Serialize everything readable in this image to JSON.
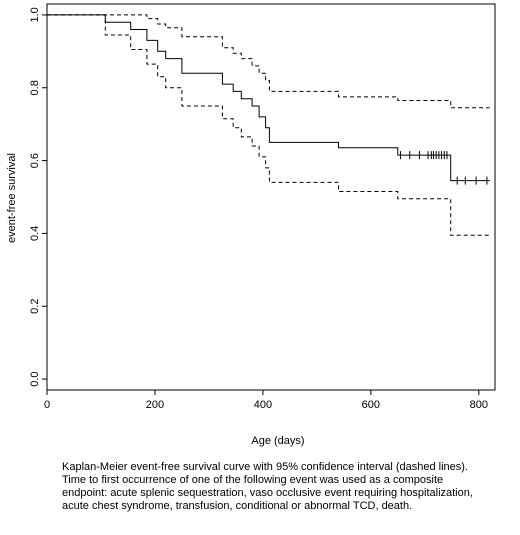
{
  "chart_data": {
    "type": "line",
    "title": "",
    "xlabel": "Age (days)",
    "ylabel": "event-free survival",
    "xlim": [
      0,
      830
    ],
    "ylim": [
      -0.03,
      1.03
    ],
    "x_ticks": [
      0,
      200,
      400,
      600,
      800
    ],
    "y_ticks": [
      0.0,
      0.2,
      0.4,
      0.6,
      0.8,
      1.0
    ],
    "y_tick_labels": [
      "0.0",
      "0.2",
      "0.4",
      "0.6",
      "0.8",
      "1.0"
    ],
    "grid": false,
    "series": [
      {
        "style": "solid",
        "x": [
          0,
          108,
          155,
          185,
          205,
          220,
          250,
          325,
          345,
          360,
          380,
          393,
          405,
          412,
          540,
          650,
          748,
          820
        ],
        "y": [
          1.0,
          0.98,
          0.96,
          0.93,
          0.9,
          0.88,
          0.84,
          0.81,
          0.79,
          0.77,
          0.75,
          0.72,
          0.69,
          0.65,
          0.635,
          0.615,
          0.545,
          0.545
        ]
      },
      {
        "style": "dashed",
        "x": [
          0,
          108,
          155,
          185,
          205,
          220,
          250,
          325,
          345,
          360,
          380,
          393,
          405,
          412,
          540,
          650,
          748,
          820
        ],
        "y": [
          1.0,
          1.0,
          1.0,
          0.99,
          0.975,
          0.965,
          0.94,
          0.91,
          0.895,
          0.88,
          0.86,
          0.84,
          0.82,
          0.79,
          0.775,
          0.765,
          0.745,
          0.745
        ]
      },
      {
        "style": "dashed",
        "x": [
          0,
          108,
          155,
          185,
          205,
          220,
          250,
          325,
          345,
          360,
          380,
          393,
          405,
          412,
          540,
          650,
          748,
          820
        ],
        "y": [
          1.0,
          0.945,
          0.905,
          0.865,
          0.83,
          0.8,
          0.75,
          0.715,
          0.69,
          0.665,
          0.64,
          0.61,
          0.58,
          0.54,
          0.515,
          0.495,
          0.395,
          0.395
        ]
      }
    ],
    "censor_marks": {
      "x": [
        655,
        672,
        690,
        706,
        712,
        716,
        721,
        726,
        731,
        736,
        741,
        760,
        775,
        795,
        815
      ],
      "y": [
        0.615,
        0.615,
        0.615,
        0.615,
        0.615,
        0.615,
        0.615,
        0.615,
        0.615,
        0.615,
        0.615,
        0.545,
        0.545,
        0.545,
        0.545
      ]
    }
  },
  "caption": {
    "line1": "Kaplan-Meier event-free survival curve with 95% confidence interval (dashed lines).",
    "line2": "Time to first occurrence of one of the following event was used as a composite",
    "line3": "endpoint: acute splenic sequestration, vaso occlusive event  requiring hospitalization,",
    "line4": "acute chest syndrome,  transfusion, conditional or abnormal TCD, death."
  }
}
